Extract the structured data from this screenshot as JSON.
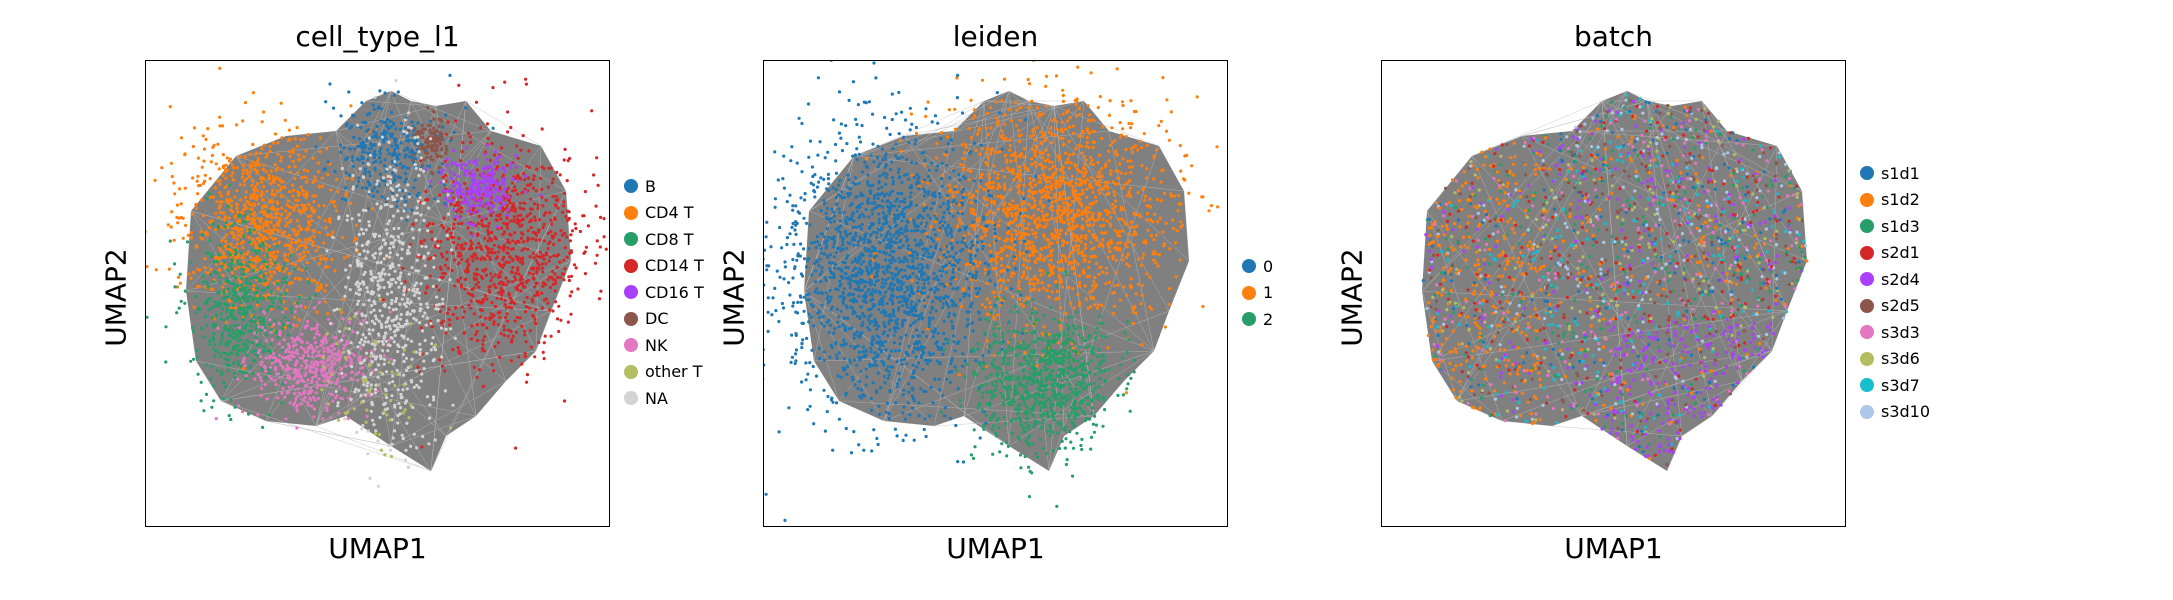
{
  "chart_data": [
    {
      "type": "scatter",
      "title": "cell_type_l1",
      "xlabel": "UMAP1",
      "ylabel": "UMAP2",
      "legend": "right",
      "grid": false,
      "ticks": "none",
      "series": [
        {
          "name": "B",
          "color": "#1f77b4"
        },
        {
          "name": "CD4 T",
          "color": "#ff7f0e"
        },
        {
          "name": "CD8 T",
          "color": "#279e68"
        },
        {
          "name": "CD14 T",
          "color": "#d62728"
        },
        {
          "name": "CD16 T",
          "color": "#aa40fc"
        },
        {
          "name": "DC",
          "color": "#8c564b"
        },
        {
          "name": "NK",
          "color": "#e377c2"
        },
        {
          "name": "other T",
          "color": "#b5bd61"
        },
        {
          "name": "NA",
          "color": "#d3d3d3"
        }
      ]
    },
    {
      "type": "scatter",
      "title": "leiden",
      "xlabel": "UMAP1",
      "ylabel": "UMAP2",
      "legend": "right",
      "grid": false,
      "ticks": "none",
      "series": [
        {
          "name": "0",
          "color": "#1f77b4"
        },
        {
          "name": "1",
          "color": "#ff7f0e"
        },
        {
          "name": "2",
          "color": "#279e68"
        }
      ]
    },
    {
      "type": "scatter",
      "title": "batch",
      "xlabel": "UMAP1",
      "ylabel": "UMAP2",
      "legend": "right",
      "grid": false,
      "ticks": "none",
      "series": [
        {
          "name": "s1d1",
          "color": "#1f77b4"
        },
        {
          "name": "s1d2",
          "color": "#ff7f0e"
        },
        {
          "name": "s1d3",
          "color": "#279e68"
        },
        {
          "name": "s2d1",
          "color": "#d62728"
        },
        {
          "name": "s2d4",
          "color": "#aa40fc"
        },
        {
          "name": "s2d5",
          "color": "#8c564b"
        },
        {
          "name": "s3d3",
          "color": "#e377c2"
        },
        {
          "name": "s3d6",
          "color": "#b5bd61"
        },
        {
          "name": "s3d7",
          "color": "#17becf"
        },
        {
          "name": "s3d10",
          "color": "#aec7e8"
        }
      ]
    }
  ],
  "edge_color": "#808080"
}
